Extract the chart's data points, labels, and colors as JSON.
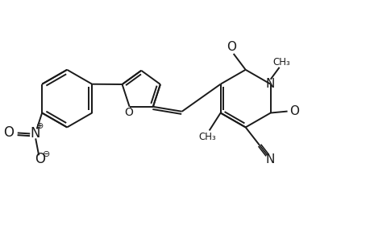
{
  "background_color": "#ffffff",
  "line_color": "#1a1a1a",
  "line_width": 1.4,
  "font_size": 10,
  "figure_width": 4.6,
  "figure_height": 3.0,
  "dpi": 100,
  "xlim": [
    0,
    9.2
  ],
  "ylim": [
    0,
    6.0
  ]
}
